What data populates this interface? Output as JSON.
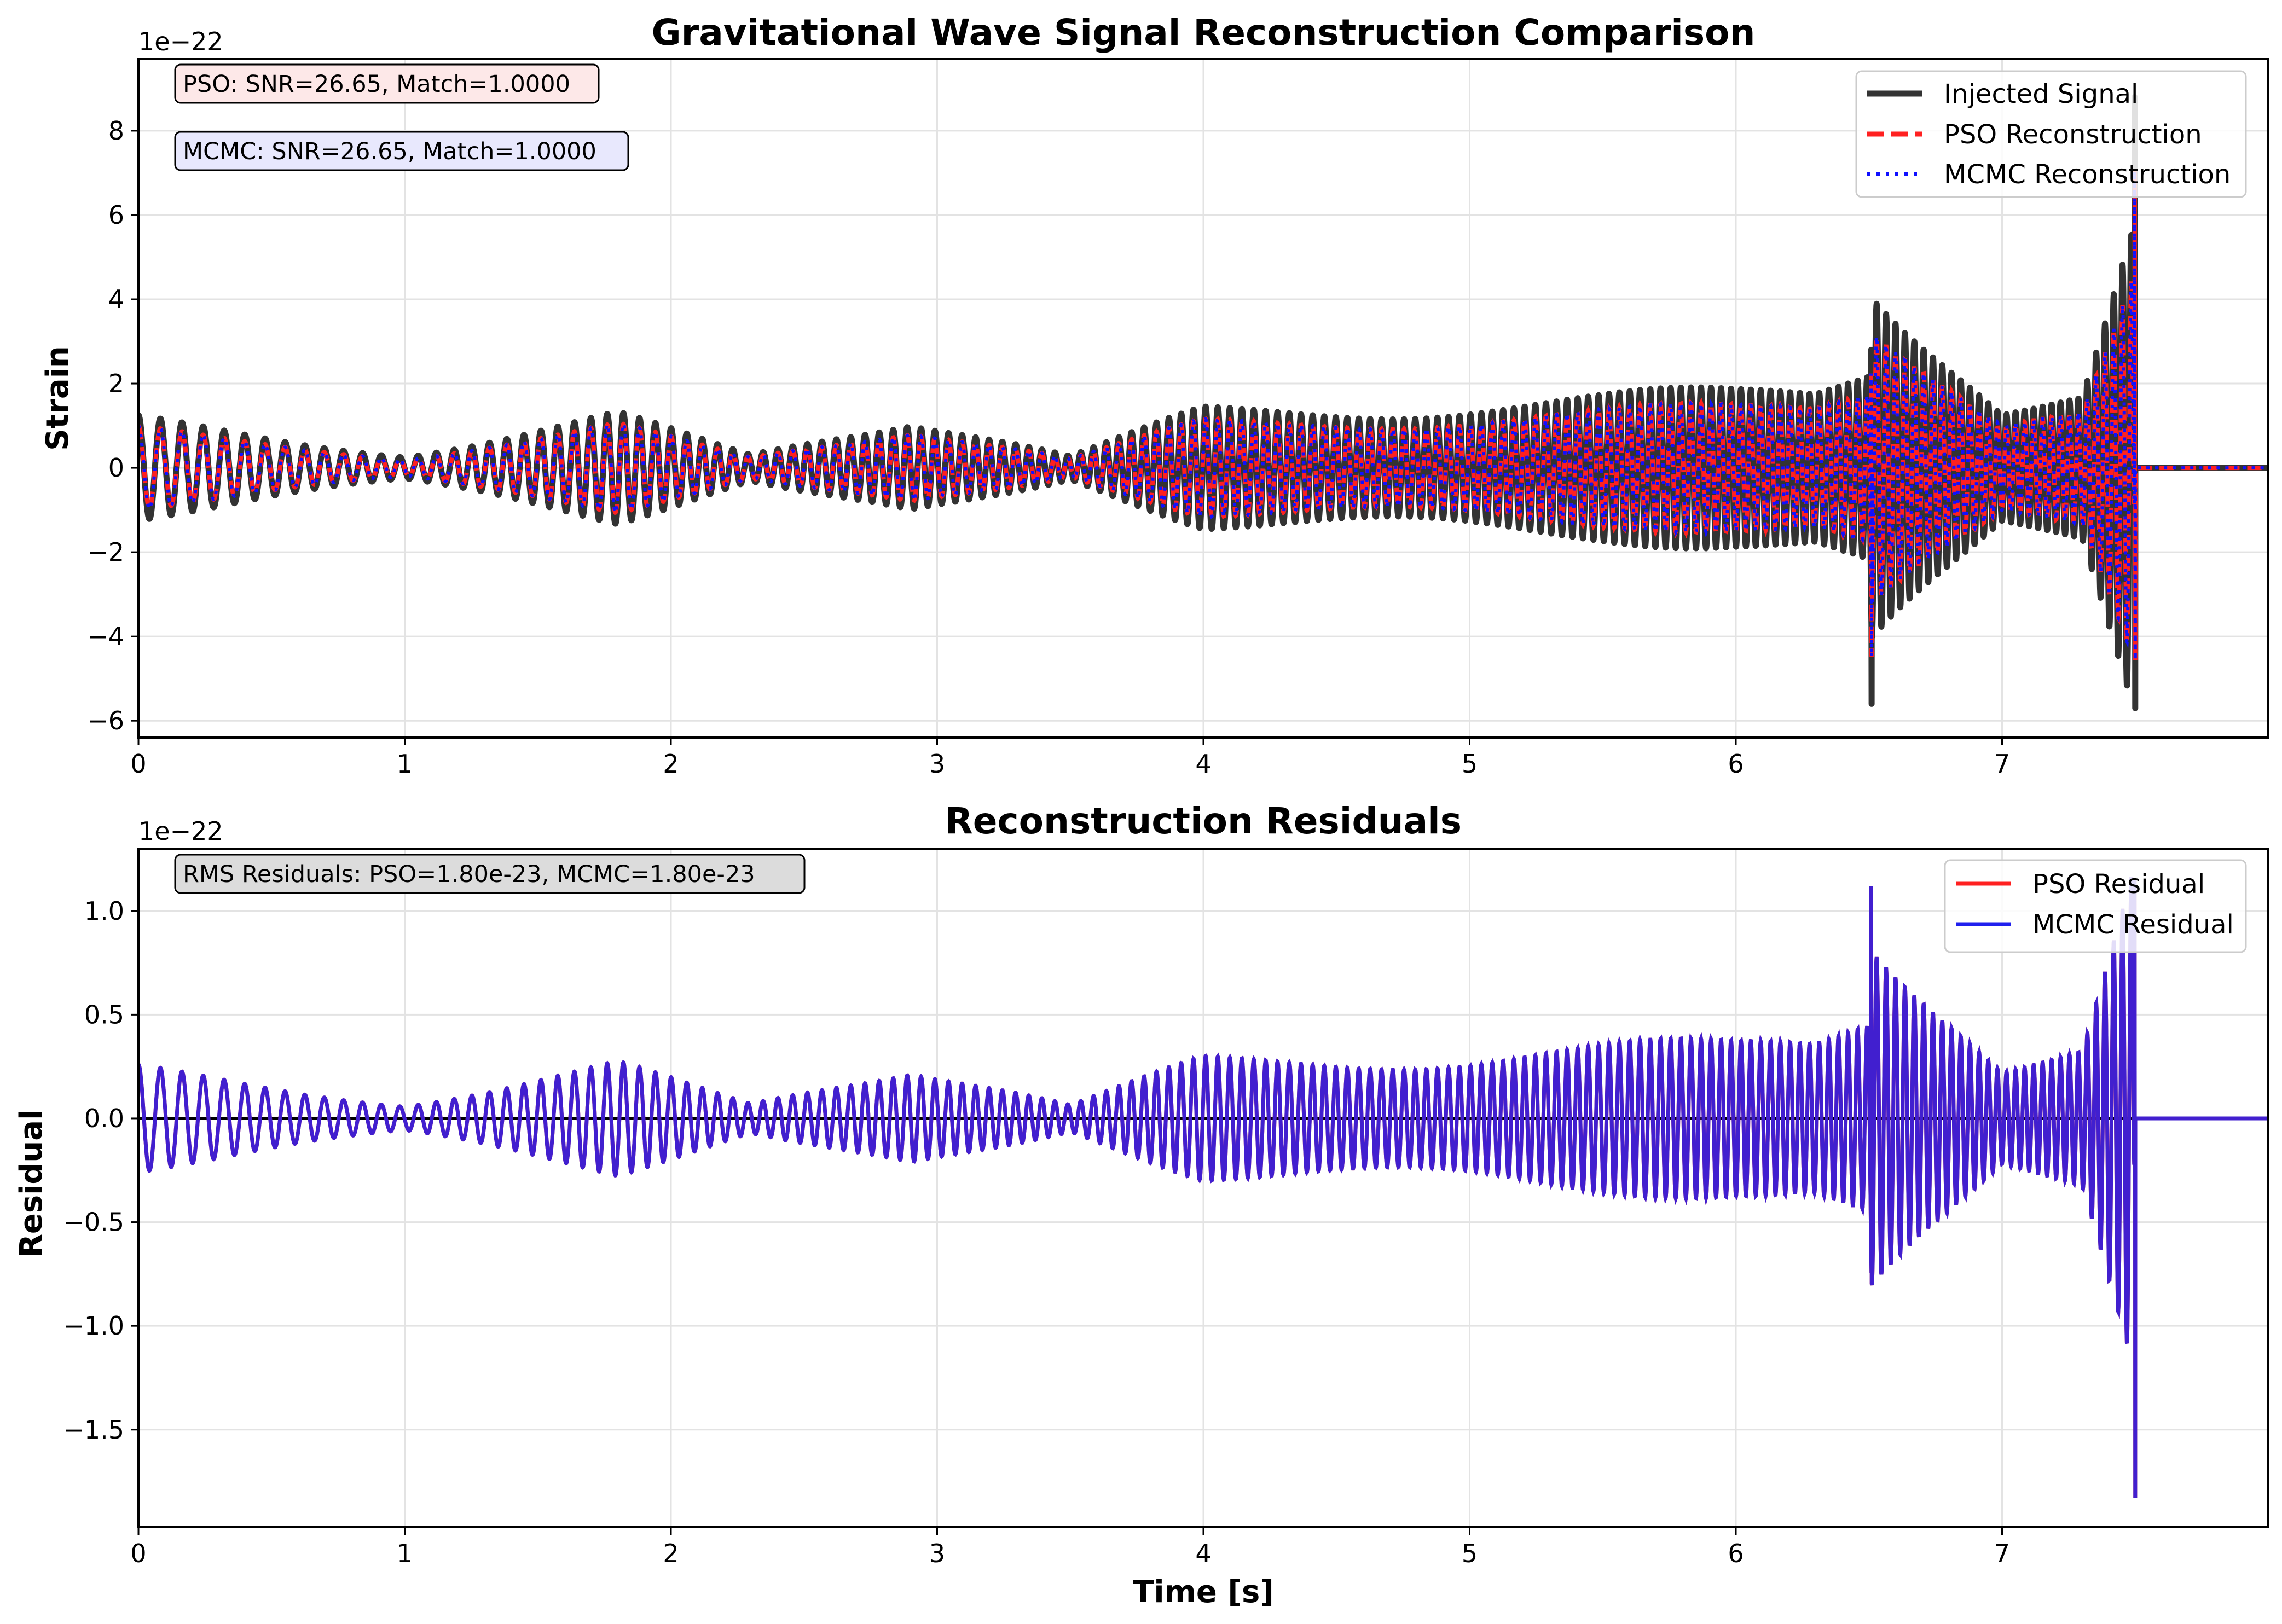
{
  "chart_data": [
    {
      "type": "line",
      "title": "Gravitational Wave Signal Reconstruction Comparison",
      "xlabel": "",
      "ylabel": "Strain",
      "y_offset_text": "1e−22",
      "xlim": [
        0,
        8.0
      ],
      "ylim": [
        -6.4,
        9.7
      ],
      "xticks": [
        0,
        1,
        2,
        3,
        4,
        5,
        6,
        7
      ],
      "yticks": [
        -6,
        -4,
        -2,
        0,
        2,
        4,
        6,
        8
      ],
      "ytick_labels": [
        "−6",
        "−4",
        "−2",
        "0",
        "2",
        "4",
        "6",
        "8"
      ],
      "grid": true,
      "legend_position": "top-right",
      "annotations": [
        "PSO: SNR=26.65, Match=1.0000",
        "MCMC: SNR=26.65, Match=1.0000"
      ],
      "series": [
        {
          "name": "Injected Signal",
          "color": "#333333",
          "style": "solid",
          "amplitude_scale": 1.0
        },
        {
          "name": "PSO Reconstruction",
          "color": "#ff2020",
          "style": "dashed",
          "amplitude_scale": 0.8
        },
        {
          "name": "MCMC Reconstruction",
          "color": "#1010ff",
          "style": "dotted",
          "amplitude_scale": 0.8
        }
      ],
      "envelope": {
        "x": [
          0,
          0.5,
          1.0,
          1.8,
          2.3,
          2.9,
          3.5,
          4.0,
          4.5,
          5.0,
          5.5,
          6.0,
          6.3,
          6.5,
          6.51,
          7.0,
          7.3,
          7.49,
          7.5,
          8.0
        ],
        "y": [
          1.25,
          0.8,
          0.35,
          1.35,
          0.35,
          1.4,
          0.3,
          1.5,
          1.6,
          1.7,
          1.8,
          2.0,
          2.2,
          3.0,
          5.6,
          1.6,
          1.8,
          5.7,
          0,
          0
        ]
      },
      "cycles": 175,
      "peaks": [
        {
          "x": 6.51,
          "min": -5.6,
          "max": 2.8
        },
        {
          "x": 7.5,
          "min": -5.7,
          "max": 8.8
        }
      ]
    },
    {
      "type": "line",
      "title": "Reconstruction Residuals",
      "xlabel": "Time [s]",
      "ylabel": "Residual",
      "y_offset_text": "1e−22",
      "xlim": [
        0,
        8.0
      ],
      "ylim": [
        -1.97,
        1.3
      ],
      "xticks": [
        0,
        1,
        2,
        3,
        4,
        5,
        6,
        7
      ],
      "yticks": [
        -1.5,
        -1.0,
        -0.5,
        0.0,
        0.5,
        1.0
      ],
      "ytick_labels": [
        "−1.5",
        "−1.0",
        "−0.5",
        "0.0",
        "0.5",
        "1.0"
      ],
      "grid": true,
      "legend_position": "top-right",
      "annotations": [
        "RMS Residuals: PSO=1.80e-23, MCMC=1.80e-23"
      ],
      "series": [
        {
          "name": "PSO Residual",
          "color": "#ff2020",
          "style": "solid"
        },
        {
          "name": "MCMC Residual",
          "color": "#2020ee",
          "style": "solid"
        }
      ],
      "envelope": {
        "x": [
          0,
          0.5,
          1.0,
          1.8,
          2.3,
          2.9,
          3.5,
          4.0,
          4.5,
          5.0,
          5.5,
          6.0,
          6.3,
          6.5,
          6.51,
          7.0,
          7.3,
          7.49,
          7.5,
          8.0
        ],
        "y": [
          0.26,
          0.17,
          0.08,
          0.28,
          0.08,
          0.3,
          0.07,
          0.31,
          0.33,
          0.34,
          0.37,
          0.4,
          0.45,
          0.62,
          1.12,
          0.28,
          0.35,
          1.2,
          0,
          0
        ]
      },
      "cycles": 175,
      "peaks": [
        {
          "x": 6.51,
          "min": -0.55,
          "max": 1.12
        },
        {
          "x": 7.5,
          "min": -1.83,
          "max": 1.15
        }
      ]
    }
  ]
}
